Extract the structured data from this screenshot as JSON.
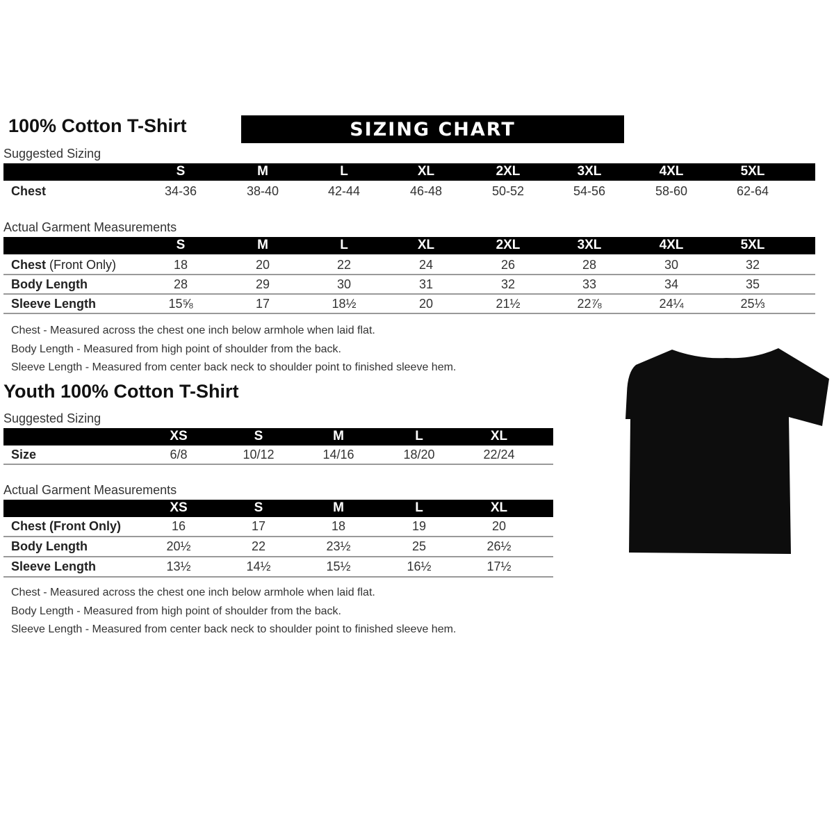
{
  "banner": "SIZING CHART",
  "adult": {
    "title": "100% Cotton T-Shirt",
    "suggested_label": "Suggested Sizing",
    "sizes": [
      "S",
      "M",
      "L",
      "XL",
      "2XL",
      "3XL",
      "4XL",
      "5XL"
    ],
    "suggested_rows": [
      {
        "label": "Chest",
        "values": [
          "34-36",
          "38-40",
          "42-44",
          "46-48",
          "50-52",
          "54-56",
          "58-60",
          "62-64"
        ]
      }
    ],
    "actual_label": "Actual Garment Measurements",
    "actual_rows": [
      {
        "label": "Chest",
        "label_suffix": " (Front Only)",
        "values": [
          "18",
          "20",
          "22",
          "24",
          "26",
          "28",
          "30",
          "32"
        ]
      },
      {
        "label": "Body Length",
        "values": [
          "28",
          "29",
          "30",
          "31",
          "32",
          "33",
          "34",
          "35"
        ]
      },
      {
        "label": "Sleeve Length",
        "values": [
          "15⅝",
          "17",
          "18½",
          "20",
          "21½",
          "22⅞",
          "24¼",
          "25⅓"
        ]
      }
    ],
    "notes": [
      "Chest - Measured across the chest one inch below armhole when laid flat.",
      "Body Length - Measured from high point of shoulder from the back.",
      "Sleeve Length - Measured from center back neck to shoulder point to finished sleeve hem."
    ]
  },
  "youth": {
    "title": "Youth 100% Cotton T-Shirt",
    "suggested_label": "Suggested Sizing",
    "sizes": [
      "XS",
      "S",
      "M",
      "L",
      "XL"
    ],
    "suggested_rows": [
      {
        "label": "Size",
        "values": [
          "6/8",
          "10/12",
          "14/16",
          "18/20",
          "22/24"
        ]
      }
    ],
    "actual_label": "Actual Garment Measurements",
    "actual_rows": [
      {
        "label": "Chest (Front Only)",
        "values": [
          "16",
          "17",
          "18",
          "19",
          "20"
        ]
      },
      {
        "label": "Body Length",
        "values": [
          "20½",
          "22",
          "23½",
          "25",
          "26½"
        ]
      },
      {
        "label": "Sleeve Length",
        "values": [
          "13½",
          "14½",
          "15½",
          "16½",
          "17½"
        ]
      }
    ],
    "notes": [
      "Chest - Measured across the chest one inch below armhole when laid flat.",
      "Body Length - Measured from high point of shoulder from the back.",
      "Sleeve Length - Measured from center back neck to shoulder point to finished sleeve hem."
    ]
  },
  "tshirt_color": "#0d0d0d"
}
